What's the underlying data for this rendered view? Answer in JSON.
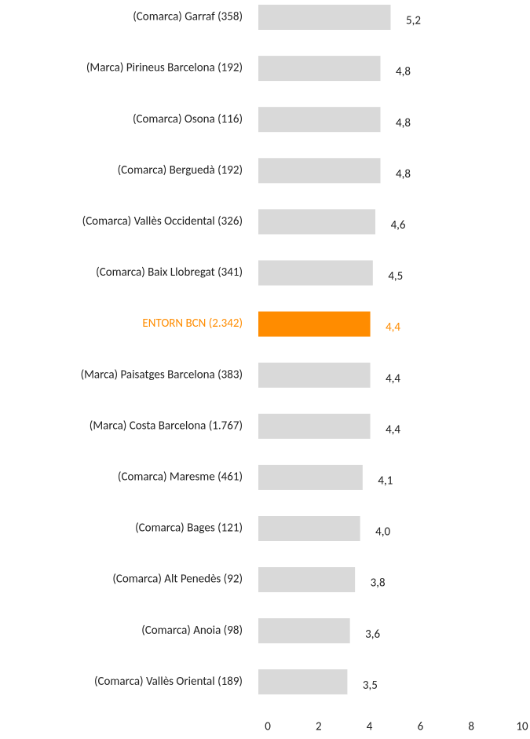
{
  "chart_data": {
    "type": "barh",
    "categories": [
      "(Comarca) Garraf (358)",
      "(Marca) Pirineus Barcelona (192)",
      "(Comarca) Osona (116)",
      "(Comarca) Berguedà (192)",
      "(Comarca) Vallès Occidental (326)",
      "(Comarca) Baix Llobregat (341)",
      "ENTORN BCN (2.342)",
      "(Marca) Paisatges Barcelona (383)",
      "(Marca) Costa Barcelona (1.767)",
      "(Comarca) Maresme (461)",
      "(Comarca) Bages (121)",
      "(Comarca) Alt Penedès (92)",
      "(Comarca) Anoia (98)",
      "(Comarca) Vallès Oriental (189)"
    ],
    "values": [
      5.2,
      4.8,
      4.8,
      4.8,
      4.6,
      4.5,
      4.4,
      4.4,
      4.4,
      4.1,
      4.0,
      3.8,
      3.6,
      3.5
    ],
    "value_labels": [
      "5,2",
      "4,8",
      "4,8",
      "4,8",
      "4,6",
      "4,5",
      "4,4",
      "4,4",
      "4,4",
      "4,1",
      "4,0",
      "3,8",
      "3,6",
      "3,5"
    ],
    "color": "#d9d9d9",
    "colors": [
      "#d9d9d9",
      "#d9d9d9",
      "#d9d9d9",
      "#d9d9d9",
      "#d9d9d9",
      "#d9d9d9",
      "#ff8c00",
      "#d9d9d9",
      "#d9d9d9",
      "#d9d9d9",
      "#d9d9d9",
      "#d9d9d9",
      "#d9d9d9",
      "#d9d9d9"
    ],
    "xlim": [
      0,
      10
    ],
    "xticks": [
      0,
      2,
      4,
      6,
      8,
      10
    ],
    "grid": false
  }
}
